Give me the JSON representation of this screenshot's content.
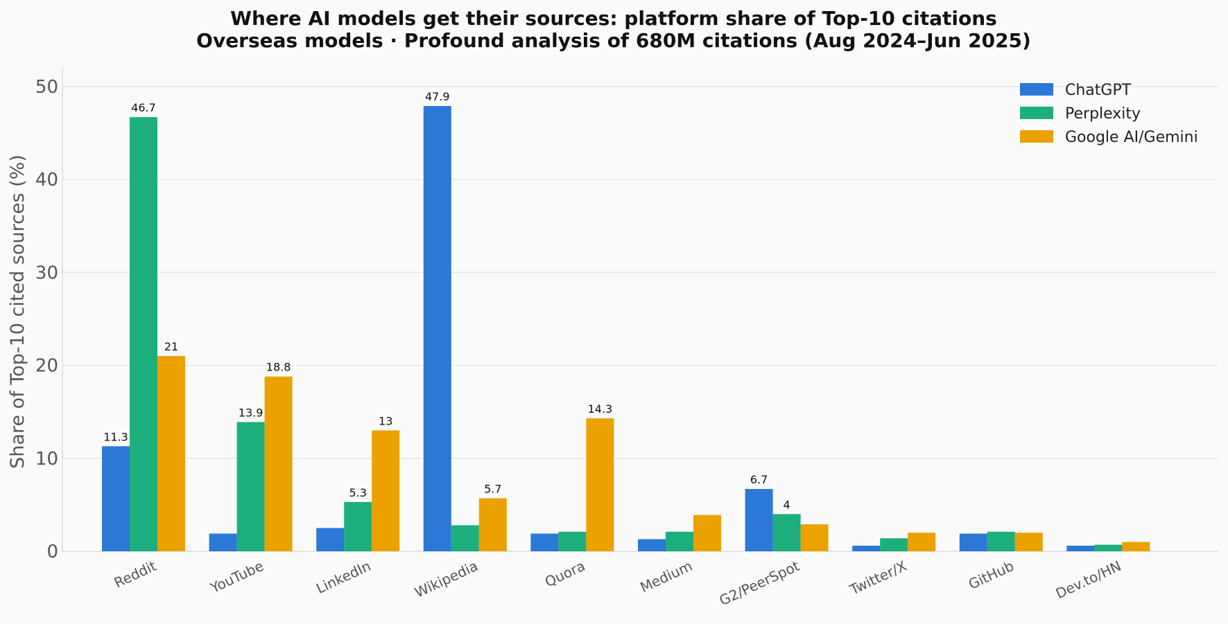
{
  "chart_data": {
    "type": "bar",
    "title": "Where AI models get their sources: platform share of Top-10 citations",
    "subtitle": "Overseas models · Profound analysis of 680M citations (Aug 2024–Jun 2025)",
    "xlabel": "",
    "ylabel": "Share of Top-10 cited sources (%)",
    "ylim": [
      0,
      52
    ],
    "yticks": [
      "0",
      "10",
      "20",
      "30",
      "40",
      "50"
    ],
    "grid": true,
    "legend_position": "top-right",
    "categories": [
      "Reddit",
      "YouTube",
      "LinkedIn",
      "Wikipedia",
      "Quora",
      "Medium",
      "G2/PeerSpot",
      "Twitter/X",
      "GitHub",
      "Dev.to/HN"
    ],
    "series": [
      {
        "name": "ChatGPT",
        "color": "#2b78d6",
        "values": [
          11.3,
          1.9,
          2.5,
          47.9,
          1.9,
          1.3,
          6.7,
          0.6,
          1.9,
          0.6
        ],
        "labels": [
          "11.3",
          null,
          null,
          "47.9",
          null,
          null,
          "6.7",
          null,
          null,
          null
        ]
      },
      {
        "name": "Perplexity",
        "color": "#1caf7d",
        "values": [
          46.7,
          13.9,
          5.3,
          2.8,
          2.1,
          2.1,
          4.0,
          1.4,
          2.1,
          0.7
        ],
        "labels": [
          "46.7",
          "13.9",
          "5.3",
          null,
          null,
          null,
          "4",
          null,
          null,
          null
        ]
      },
      {
        "name": "Google AI/Gemini",
        "color": "#eba100",
        "values": [
          21.0,
          18.8,
          13.0,
          5.7,
          14.3,
          3.9,
          2.9,
          2.0,
          2.0,
          1.0
        ],
        "labels": [
          "21",
          "18.8",
          "13",
          "5.7",
          "14.3",
          null,
          null,
          null,
          null,
          null
        ]
      }
    ]
  }
}
